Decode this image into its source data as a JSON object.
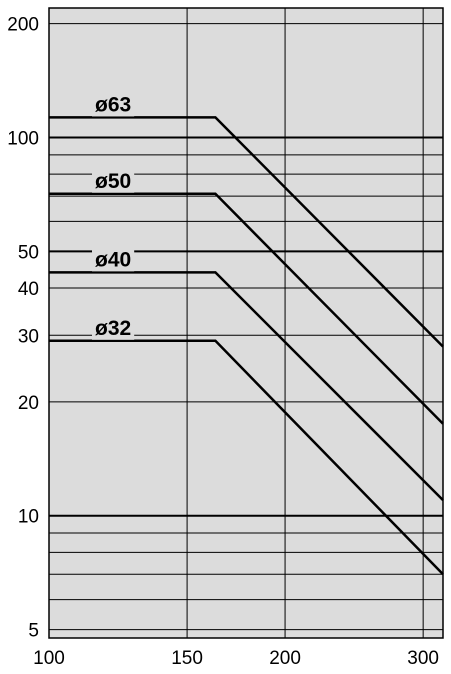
{
  "chart_data": {
    "type": "line",
    "title": "",
    "xlabel": "",
    "ylabel": "",
    "x_scale": "log",
    "y_scale": "log",
    "xlim": [
      100,
      318
    ],
    "ylim": [
      4.75,
      220
    ],
    "grid": true,
    "background": "#dcdcdc",
    "line_color": "#000000",
    "x_ticks": [
      {
        "value": 100,
        "label": "100"
      },
      {
        "value": 150,
        "label": "150"
      },
      {
        "value": 200,
        "label": "200"
      },
      {
        "value": 300,
        "label": "300"
      }
    ],
    "y_ticks": [
      {
        "value": 5,
        "label": "5"
      },
      {
        "value": 10,
        "label": "10"
      },
      {
        "value": 20,
        "label": "20"
      },
      {
        "value": 30,
        "label": "30"
      },
      {
        "value": 40,
        "label": "40"
      },
      {
        "value": 50,
        "label": "50"
      },
      {
        "value": 100,
        "label": "100"
      },
      {
        "value": 200,
        "label": "200"
      }
    ],
    "y_minor_gridlines": [
      6,
      7,
      8,
      9,
      60,
      70,
      80,
      90
    ],
    "y_bold_gridlines": [
      10,
      50,
      100
    ],
    "series": [
      {
        "name": "ø63",
        "points": [
          [
            100,
            113
          ],
          [
            163,
            113
          ],
          [
            318,
            28
          ]
        ]
      },
      {
        "name": "ø50",
        "points": [
          [
            100,
            71
          ],
          [
            163,
            71
          ],
          [
            318,
            17.5
          ]
        ]
      },
      {
        "name": "ø40",
        "points": [
          [
            100,
            44
          ],
          [
            163,
            44
          ],
          [
            318,
            11
          ]
        ]
      },
      {
        "name": "ø32",
        "points": [
          [
            100,
            29
          ],
          [
            163,
            29
          ],
          [
            318,
            7
          ]
        ]
      }
    ]
  }
}
